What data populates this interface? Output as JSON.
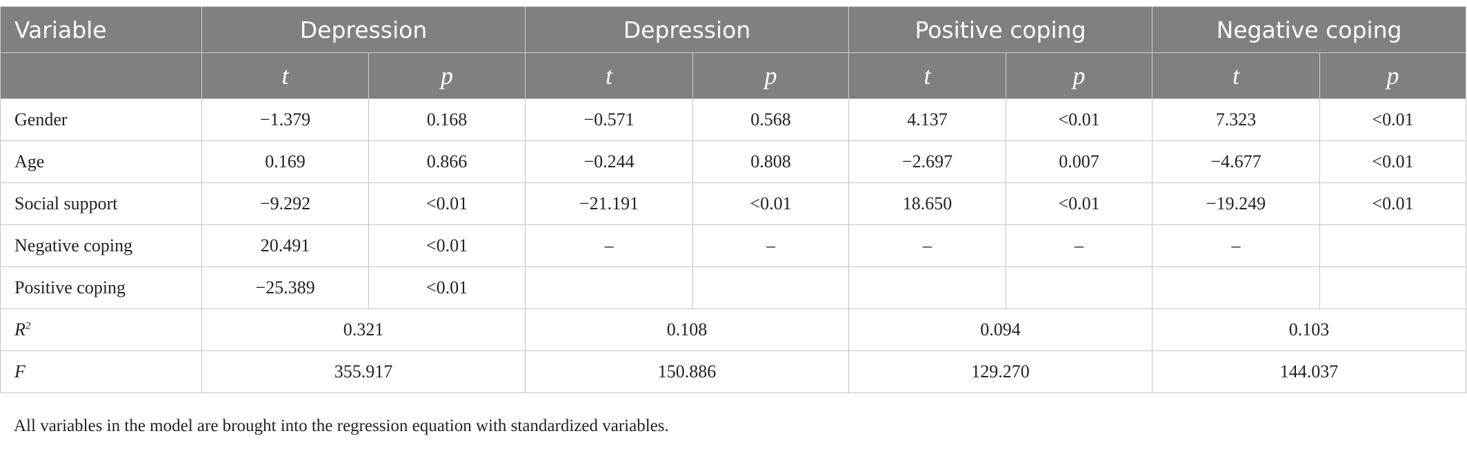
{
  "table": {
    "header": [
      "Variable",
      "Depression",
      "Depression",
      "Positive coping",
      "Negative coping"
    ],
    "subheader": [
      "t",
      "p",
      "t",
      "p",
      "t",
      "p",
      "t",
      "p"
    ],
    "rows": [
      {
        "label": "Gender",
        "cells": [
          "−1.379",
          "0.168",
          "−0.571",
          "0.568",
          "4.137",
          "<0.01",
          "7.323",
          "<0.01"
        ]
      },
      {
        "label": "Age",
        "cells": [
          "0.169",
          "0.866",
          "−0.244",
          "0.808",
          "−2.697",
          "0.007",
          "−4.677",
          "<0.01"
        ]
      },
      {
        "label": "Social support",
        "cells": [
          "−9.292",
          "<0.01",
          "−21.191",
          "<0.01",
          "18.650",
          "<0.01",
          "−19.249",
          "<0.01"
        ]
      },
      {
        "label": "Negative coping",
        "cells": [
          "20.491",
          "<0.01",
          "–",
          "–",
          "–",
          "–",
          "–",
          null
        ]
      },
      {
        "label": "Positive coping",
        "cells": [
          "−25.389",
          "<0.01",
          null,
          null,
          null,
          null,
          null,
          null
        ]
      }
    ],
    "summary": [
      {
        "label": "R",
        "sup": "2",
        "cells": [
          "0.321",
          "0.108",
          "0.094",
          "0.103"
        ]
      },
      {
        "label": "F",
        "cells": [
          "355.917",
          "150.886",
          "129.270",
          "144.037"
        ]
      }
    ]
  },
  "footnote": "All variables in the model are brought into the regression equation with standardized variables."
}
